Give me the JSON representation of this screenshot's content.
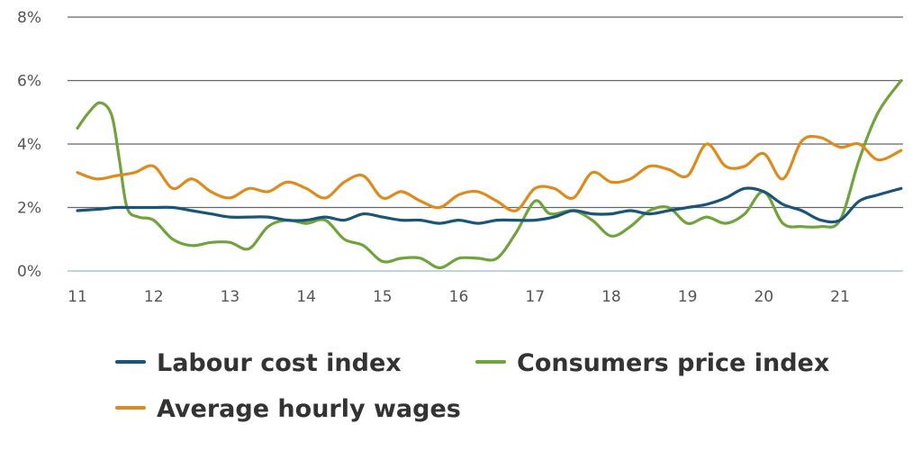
{
  "chart_data": {
    "type": "line",
    "title": "",
    "xlabel": "",
    "ylabel": "",
    "xlim": [
      11,
      21.8
    ],
    "ylim": [
      0,
      8
    ],
    "grid": true,
    "legend_position": "bottom",
    "x_ticks": [
      {
        "value": 11,
        "label": "11"
      },
      {
        "value": 12,
        "label": "12"
      },
      {
        "value": 13,
        "label": "13"
      },
      {
        "value": 14,
        "label": "14"
      },
      {
        "value": 15,
        "label": "15"
      },
      {
        "value": 16,
        "label": "16"
      },
      {
        "value": 17,
        "label": "17"
      },
      {
        "value": 18,
        "label": "18"
      },
      {
        "value": 19,
        "label": "19"
      },
      {
        "value": 20,
        "label": "20"
      },
      {
        "value": 21,
        "label": "21"
      }
    ],
    "y_ticks": [
      {
        "value": 0,
        "label": "0%"
      },
      {
        "value": 2,
        "label": "2%"
      },
      {
        "value": 4,
        "label": "4%"
      },
      {
        "value": 6,
        "label": "6%"
      },
      {
        "value": 8,
        "label": "8%"
      }
    ],
    "series": [
      {
        "name": "Labour cost index",
        "color": "#1a5578",
        "points": [
          [
            11,
            1.9
          ],
          [
            11.3,
            1.95
          ],
          [
            11.5,
            2.0
          ],
          [
            11.75,
            2.0
          ],
          [
            12,
            2.0
          ],
          [
            12.25,
            2.0
          ],
          [
            12.5,
            1.9
          ],
          [
            12.75,
            1.8
          ],
          [
            13,
            1.7
          ],
          [
            13.25,
            1.7
          ],
          [
            13.5,
            1.7
          ],
          [
            13.75,
            1.6
          ],
          [
            14,
            1.6
          ],
          [
            14.25,
            1.7
          ],
          [
            14.5,
            1.6
          ],
          [
            14.75,
            1.8
          ],
          [
            15,
            1.7
          ],
          [
            15.25,
            1.6
          ],
          [
            15.5,
            1.6
          ],
          [
            15.75,
            1.5
          ],
          [
            16,
            1.6
          ],
          [
            16.25,
            1.5
          ],
          [
            16.5,
            1.6
          ],
          [
            16.75,
            1.6
          ],
          [
            17,
            1.6
          ],
          [
            17.25,
            1.7
          ],
          [
            17.5,
            1.9
          ],
          [
            17.75,
            1.8
          ],
          [
            18,
            1.8
          ],
          [
            18.25,
            1.9
          ],
          [
            18.5,
            1.8
          ],
          [
            18.75,
            1.9
          ],
          [
            19,
            2.0
          ],
          [
            19.25,
            2.1
          ],
          [
            19.5,
            2.3
          ],
          [
            19.75,
            2.6
          ],
          [
            20,
            2.5
          ],
          [
            20.25,
            2.1
          ],
          [
            20.5,
            1.9
          ],
          [
            20.75,
            1.6
          ],
          [
            21,
            1.6
          ],
          [
            21.25,
            2.2
          ],
          [
            21.5,
            2.4
          ],
          [
            21.8,
            2.6
          ]
        ]
      },
      {
        "name": "Consumers price index",
        "color": "#70a33c",
        "points": [
          [
            11,
            4.5
          ],
          [
            11.15,
            5.0
          ],
          [
            11.3,
            5.3
          ],
          [
            11.45,
            4.9
          ],
          [
            11.55,
            3.5
          ],
          [
            11.65,
            2.0
          ],
          [
            11.8,
            1.7
          ],
          [
            12,
            1.6
          ],
          [
            12.25,
            1.0
          ],
          [
            12.5,
            0.8
          ],
          [
            12.75,
            0.9
          ],
          [
            13,
            0.9
          ],
          [
            13.25,
            0.7
          ],
          [
            13.5,
            1.4
          ],
          [
            13.75,
            1.6
          ],
          [
            14,
            1.5
          ],
          [
            14.25,
            1.6
          ],
          [
            14.5,
            1.0
          ],
          [
            14.75,
            0.8
          ],
          [
            15,
            0.3
          ],
          [
            15.25,
            0.4
          ],
          [
            15.5,
            0.4
          ],
          [
            15.75,
            0.1
          ],
          [
            16,
            0.4
          ],
          [
            16.25,
            0.4
          ],
          [
            16.5,
            0.4
          ],
          [
            16.75,
            1.2
          ],
          [
            17,
            2.2
          ],
          [
            17.2,
            1.8
          ],
          [
            17.5,
            1.9
          ],
          [
            17.75,
            1.6
          ],
          [
            18,
            1.1
          ],
          [
            18.25,
            1.4
          ],
          [
            18.5,
            1.9
          ],
          [
            18.75,
            2.0
          ],
          [
            19,
            1.5
          ],
          [
            19.25,
            1.7
          ],
          [
            19.5,
            1.5
          ],
          [
            19.75,
            1.8
          ],
          [
            20,
            2.5
          ],
          [
            20.25,
            1.5
          ],
          [
            20.5,
            1.4
          ],
          [
            20.75,
            1.4
          ],
          [
            21,
            1.6
          ],
          [
            21.25,
            3.5
          ],
          [
            21.5,
            5.0
          ],
          [
            21.8,
            6.0
          ]
        ]
      },
      {
        "name": "Average hourly wages",
        "color": "#de8b1e",
        "points": [
          [
            11,
            3.1
          ],
          [
            11.25,
            2.9
          ],
          [
            11.5,
            3.0
          ],
          [
            11.75,
            3.1
          ],
          [
            12,
            3.3
          ],
          [
            12.25,
            2.6
          ],
          [
            12.5,
            2.9
          ],
          [
            12.75,
            2.5
          ],
          [
            13,
            2.3
          ],
          [
            13.25,
            2.6
          ],
          [
            13.5,
            2.5
          ],
          [
            13.75,
            2.8
          ],
          [
            14,
            2.6
          ],
          [
            14.25,
            2.3
          ],
          [
            14.5,
            2.8
          ],
          [
            14.75,
            3.0
          ],
          [
            15,
            2.3
          ],
          [
            15.25,
            2.5
          ],
          [
            15.5,
            2.2
          ],
          [
            15.75,
            2.0
          ],
          [
            16,
            2.4
          ],
          [
            16.25,
            2.5
          ],
          [
            16.5,
            2.2
          ],
          [
            16.75,
            1.9
          ],
          [
            17,
            2.6
          ],
          [
            17.25,
            2.6
          ],
          [
            17.5,
            2.3
          ],
          [
            17.75,
            3.1
          ],
          [
            18,
            2.8
          ],
          [
            18.25,
            2.9
          ],
          [
            18.5,
            3.3
          ],
          [
            18.75,
            3.2
          ],
          [
            19,
            3.0
          ],
          [
            19.25,
            4.0
          ],
          [
            19.5,
            3.3
          ],
          [
            19.75,
            3.3
          ],
          [
            20,
            3.7
          ],
          [
            20.25,
            2.9
          ],
          [
            20.5,
            4.1
          ],
          [
            20.75,
            4.2
          ],
          [
            21,
            3.9
          ],
          [
            21.25,
            4.0
          ],
          [
            21.5,
            3.5
          ],
          [
            21.8,
            3.8
          ]
        ]
      }
    ]
  }
}
